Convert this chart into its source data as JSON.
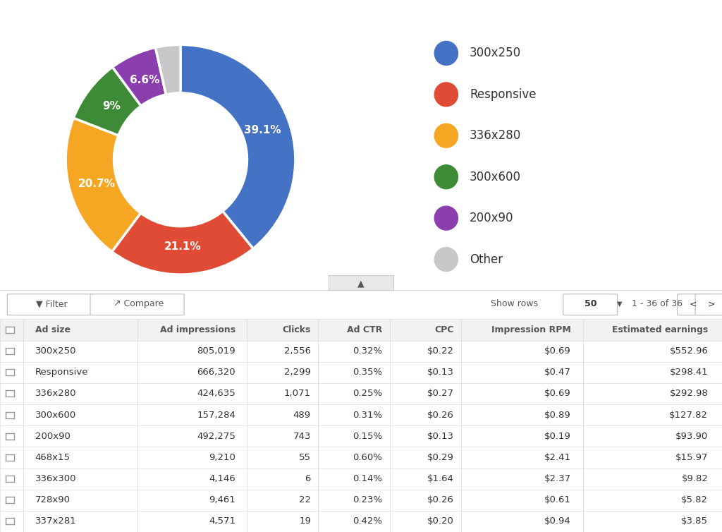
{
  "pie_labels": [
    "300x250",
    "Responsive",
    "336x280",
    "300x600",
    "200x90",
    "Other"
  ],
  "pie_values": [
    39.1,
    21.1,
    20.7,
    9.0,
    6.6,
    3.5
  ],
  "pie_colors": [
    "#4472C4",
    "#E04B36",
    "#F5A623",
    "#3D8B37",
    "#8B3FAF",
    "#C8C8C8"
  ],
  "pie_label_texts": [
    "39.1%",
    "21.1%",
    "20.7%",
    "9%",
    "6.6%",
    ""
  ],
  "legend_labels": [
    "300x250",
    "Responsive",
    "336x280",
    "300x600",
    "200x90",
    "Other"
  ],
  "table_header": [
    "Ad size",
    "Ad impressions",
    "Clicks",
    "Ad CTR",
    "CPC",
    "Impression RPM",
    "Estimated earnings"
  ],
  "table_rows": [
    [
      "300x250",
      "805,019",
      "2,556",
      "0.32%",
      "$0.22",
      "$0.69",
      "$552.96"
    ],
    [
      "Responsive",
      "666,320",
      "2,299",
      "0.35%",
      "$0.13",
      "$0.47",
      "$298.41"
    ],
    [
      "336x280",
      "424,635",
      "1,071",
      "0.25%",
      "$0.27",
      "$0.69",
      "$292.98"
    ],
    [
      "300x600",
      "157,284",
      "489",
      "0.31%",
      "$0.26",
      "$0.89",
      "$127.82"
    ],
    [
      "200x90",
      "492,275",
      "743",
      "0.15%",
      "$0.13",
      "$0.19",
      "$93.90"
    ],
    [
      "468x15",
      "9,210",
      "55",
      "0.60%",
      "$0.29",
      "$2.41",
      "$15.97"
    ],
    [
      "336x300",
      "4,146",
      "6",
      "0.14%",
      "$1.64",
      "$2.37",
      "$9.82"
    ],
    [
      "728x90",
      "9,461",
      "22",
      "0.23%",
      "$0.26",
      "$0.61",
      "$5.82"
    ],
    [
      "337x281",
      "4,571",
      "19",
      "0.42%",
      "$0.20",
      "$0.94",
      "$3.85"
    ]
  ],
  "bg_color": "#FFFFFF",
  "table_bg_color": "#F8F8F8",
  "table_header_color": "#F2F2F2",
  "table_row_color": "#FFFFFF",
  "table_border_color": "#DDDDDD",
  "header_text_color": "#555555",
  "row_text_color": "#333333",
  "toolbar_bg": "#F0F0F0"
}
